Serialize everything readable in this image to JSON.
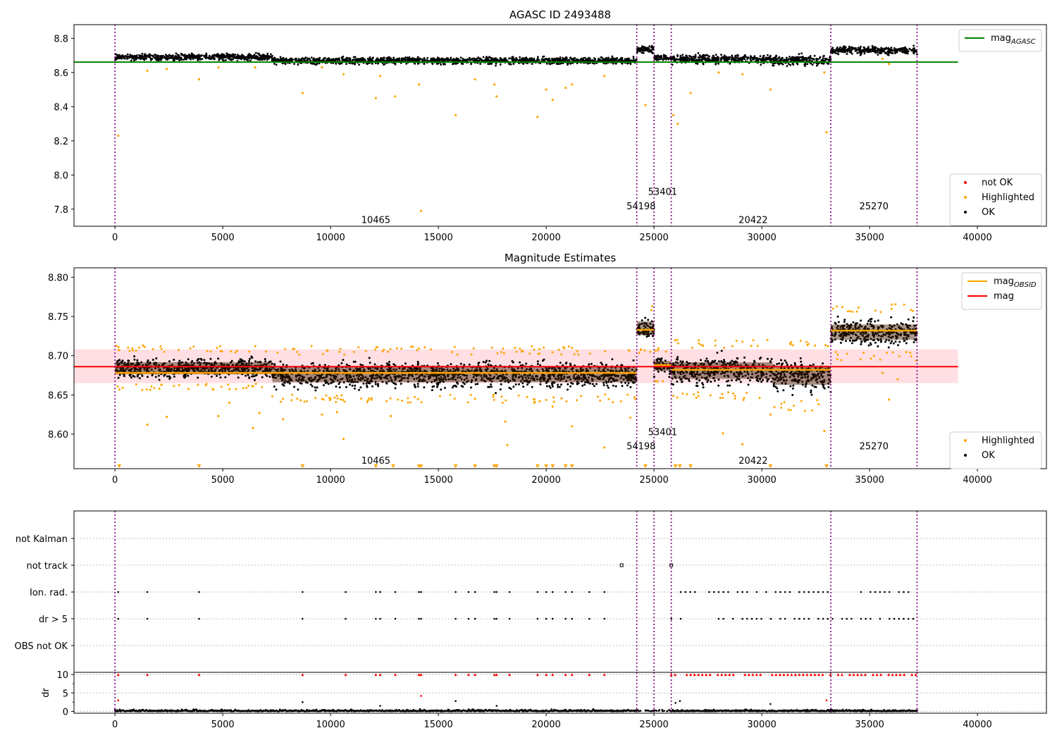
{
  "chart_data": [
    {
      "type": "scatter",
      "id": "top",
      "title": "AGASC ID 2493488",
      "xlim": [
        -1900,
        43200
      ],
      "ylim": [
        7.7,
        8.88
      ],
      "xticks": [
        0,
        5000,
        10000,
        15000,
        20000,
        25000,
        30000,
        35000,
        40000
      ],
      "yticks": [
        7.8,
        8.0,
        8.2,
        8.4,
        8.6,
        8.8
      ],
      "ytick_labels": [
        "7.8",
        "8.0",
        "8.2",
        "8.4",
        "8.6",
        "8.8"
      ],
      "obs_boundaries": [
        0,
        24200,
        25000,
        25800,
        33200,
        37200
      ],
      "obs_labels": [
        {
          "text": "10465",
          "x": 12100,
          "y": 7.74
        },
        {
          "text": "54198",
          "x": 24400,
          "y": 7.82
        },
        {
          "text": "53401",
          "x": 25400,
          "y": 7.905
        },
        {
          "text": "20422",
          "x": 29600,
          "y": 7.74
        },
        {
          "text": "25270",
          "x": 35200,
          "y": 7.82
        }
      ],
      "mag_agasc": {
        "value": 8.661,
        "x_range": [
          -1900,
          39100
        ],
        "color": "#008000"
      },
      "segments": [
        {
          "x0": 0,
          "x1": 7300,
          "center": 8.69,
          "spread": 0.035
        },
        {
          "x0": 7300,
          "x1": 24200,
          "center": 8.67,
          "spread": 0.035
        },
        {
          "x0": 24200,
          "x1": 25000,
          "center": 8.737,
          "spread": 0.04
        },
        {
          "x0": 25000,
          "x1": 25800,
          "center": 8.686,
          "spread": 0.03
        },
        {
          "x0": 25800,
          "x1": 30500,
          "center": 8.68,
          "spread": 0.045
        },
        {
          "x0": 30500,
          "x1": 33200,
          "center": 8.67,
          "spread": 0.05
        },
        {
          "x0": 33200,
          "x1": 37200,
          "center": 8.73,
          "spread": 0.04
        }
      ],
      "highlighted_points": [
        [
          150,
          8.23
        ],
        [
          1500,
          8.61
        ],
        [
          2400,
          8.62
        ],
        [
          3900,
          8.56
        ],
        [
          8700,
          8.48
        ],
        [
          10600,
          8.59
        ],
        [
          12100,
          8.45
        ],
        [
          12300,
          8.58
        ],
        [
          13000,
          8.46
        ],
        [
          14100,
          8.53
        ],
        [
          14200,
          7.79
        ],
        [
          15800,
          8.35
        ],
        [
          16700,
          8.56
        ],
        [
          17600,
          8.53
        ],
        [
          17700,
          8.46
        ],
        [
          19600,
          8.34
        ],
        [
          20000,
          8.5
        ],
        [
          20300,
          8.44
        ],
        [
          20900,
          8.51
        ],
        [
          21200,
          8.53
        ],
        [
          22700,
          8.58
        ],
        [
          24600,
          8.41
        ],
        [
          25900,
          8.35
        ],
        [
          26100,
          8.3
        ],
        [
          26700,
          8.48
        ],
        [
          28000,
          8.6
        ],
        [
          29100,
          8.59
        ],
        [
          30400,
          8.5
        ],
        [
          32900,
          8.6
        ],
        [
          33000,
          8.25
        ],
        [
          35900,
          8.65
        ],
        [
          35600,
          8.68
        ],
        [
          4800,
          8.63
        ],
        [
          6500,
          8.63
        ],
        [
          9600,
          8.63
        ]
      ],
      "legend": {
        "position": "lower-right",
        "entries": [
          {
            "label": "not OK",
            "color": "#ff0000"
          },
          {
            "label": "Highlighted",
            "color": "#ffa500"
          },
          {
            "label": "OK",
            "color": "#000000"
          }
        ]
      },
      "legend2": {
        "position": "upper-right",
        "entries": [
          {
            "label": "mag",
            "sub": "AGASC",
            "color": "#008000"
          }
        ]
      }
    },
    {
      "type": "scatter",
      "id": "mid",
      "title": "Magnitude Estimates",
      "xlim": [
        -1900,
        43200
      ],
      "ylim": [
        8.556,
        8.812
      ],
      "xticks": [
        0,
        5000,
        10000,
        15000,
        20000,
        25000,
        30000,
        35000,
        40000
      ],
      "yticks": [
        8.6,
        8.65,
        8.7,
        8.75,
        8.8
      ],
      "ytick_labels": [
        "8.60",
        "8.65",
        "8.70",
        "8.75",
        "8.80"
      ],
      "obs_boundaries": [
        0,
        24200,
        25000,
        25800,
        33200,
        37200
      ],
      "obs_labels": [
        {
          "text": "10465",
          "x": 12100,
          "y": 8.567
        },
        {
          "text": "54198",
          "x": 24400,
          "y": 8.585
        },
        {
          "text": "53401",
          "x": 25400,
          "y": 8.603
        },
        {
          "text": "20422",
          "x": 29600,
          "y": 8.567
        },
        {
          "text": "25270",
          "x": 35200,
          "y": 8.585
        }
      ],
      "mag": {
        "value": 8.686,
        "band": [
          8.665,
          8.708
        ],
        "x_range": [
          -1900,
          39100
        ],
        "color": "#ff0000"
      },
      "mag_obsid": [
        {
          "x0": 0,
          "x1": 24200,
          "value": 8.678
        },
        {
          "x0": 24200,
          "x1": 25000,
          "value": 8.733
        },
        {
          "x0": 25000,
          "x1": 25800,
          "value": 8.688
        },
        {
          "x0": 25800,
          "x1": 33200,
          "value": 8.682
        },
        {
          "x0": 33200,
          "x1": 37200,
          "value": 8.732
        }
      ],
      "segments": [
        {
          "x0": 0,
          "x1": 7300,
          "center": 8.684,
          "spread": 0.022
        },
        {
          "x0": 7300,
          "x1": 24200,
          "center": 8.676,
          "spread": 0.028
        },
        {
          "x0": 24200,
          "x1": 25000,
          "center": 8.735,
          "spread": 0.025
        },
        {
          "x0": 25000,
          "x1": 25800,
          "center": 8.687,
          "spread": 0.018
        },
        {
          "x0": 25800,
          "x1": 30500,
          "center": 8.681,
          "spread": 0.03
        },
        {
          "x0": 30500,
          "x1": 33200,
          "center": 8.675,
          "spread": 0.035
        },
        {
          "x0": 33200,
          "x1": 37200,
          "center": 8.73,
          "spread": 0.028
        }
      ],
      "highlighted_points": [
        [
          1500,
          8.612
        ],
        [
          2400,
          8.622
        ],
        [
          4800,
          8.623
        ],
        [
          5300,
          8.64
        ],
        [
          6400,
          8.608
        ],
        [
          6700,
          8.627
        ],
        [
          7800,
          8.619
        ],
        [
          9600,
          8.625
        ],
        [
          10300,
          8.628
        ],
        [
          10600,
          8.594
        ],
        [
          11700,
          8.641
        ],
        [
          12800,
          8.623
        ],
        [
          16700,
          8.645
        ],
        [
          18100,
          8.616
        ],
        [
          18200,
          8.586
        ],
        [
          19700,
          8.642
        ],
        [
          20300,
          8.635
        ],
        [
          21200,
          8.61
        ],
        [
          22700,
          8.583
        ],
        [
          23900,
          8.621
        ],
        [
          28200,
          8.601
        ],
        [
          29100,
          8.587
        ],
        [
          30400,
          8.625
        ],
        [
          32900,
          8.604
        ],
        [
          35600,
          8.678
        ],
        [
          35900,
          8.644
        ],
        [
          36300,
          8.67
        ],
        [
          1300,
          8.713
        ]
      ],
      "highlighted_edge": [
        200,
        3900,
        8700,
        12100,
        12900,
        14100,
        14200,
        15800,
        16700,
        17600,
        17700,
        19600,
        20000,
        20300,
        20900,
        21200,
        24600,
        26000,
        26200,
        26700,
        30400,
        33000
      ],
      "legend": {
        "position": "lower-right",
        "entries": [
          {
            "label": "Highlighted",
            "color": "#ffa500"
          },
          {
            "label": "OK",
            "color": "#000000"
          }
        ]
      },
      "legend2": {
        "position": "upper-right",
        "entries": [
          {
            "label": "mag",
            "sub": "OBSID",
            "color": "#ffa500"
          },
          {
            "label": "mag",
            "sub": "",
            "color": "#ff0000"
          }
        ]
      }
    },
    {
      "type": "scatter",
      "id": "flags",
      "xlim": [
        -1900,
        43200
      ],
      "categories": [
        "not Kalman",
        "not track",
        "Ion. rad.",
        "dr > 5",
        "OBS not OK"
      ],
      "obs_boundaries": [
        0,
        24200,
        25000,
        25800,
        33200,
        37200
      ],
      "not_track_points": [
        23500,
        25800
      ],
      "flag_x_points": [
        150,
        1500,
        3900,
        8700,
        10700,
        12100,
        12300,
        13000,
        14100,
        14200,
        15800,
        16400,
        16700,
        17600,
        17700,
        18300,
        19600,
        20000,
        20300,
        20900,
        21200,
        22000,
        22700
      ],
      "flag_dense_range": [
        25800,
        37200
      ]
    },
    {
      "type": "scatter",
      "id": "dr",
      "xlim": [
        -1900,
        43200
      ],
      "ylim": [
        -0.5,
        10.6
      ],
      "yticks": [
        0,
        5,
        10
      ],
      "ytick_labels": [
        "0",
        "5",
        "10"
      ],
      "ylabel": "dr",
      "obs_boundaries": [
        0,
        24200,
        25000,
        25800,
        33200,
        37200
      ],
      "xticks": [
        0,
        5000,
        10000,
        15000,
        20000,
        25000,
        30000,
        35000,
        40000
      ],
      "outlier_points": [
        [
          150,
          3.0
        ],
        [
          8700,
          2.5
        ],
        [
          14200,
          4.2
        ],
        [
          15800,
          2.8
        ],
        [
          26000,
          2.3
        ],
        [
          26200,
          2.8
        ],
        [
          30400,
          2.0
        ],
        [
          33000,
          3.0
        ],
        [
          12300,
          1.5
        ],
        [
          17700,
          1.5
        ]
      ]
    }
  ]
}
